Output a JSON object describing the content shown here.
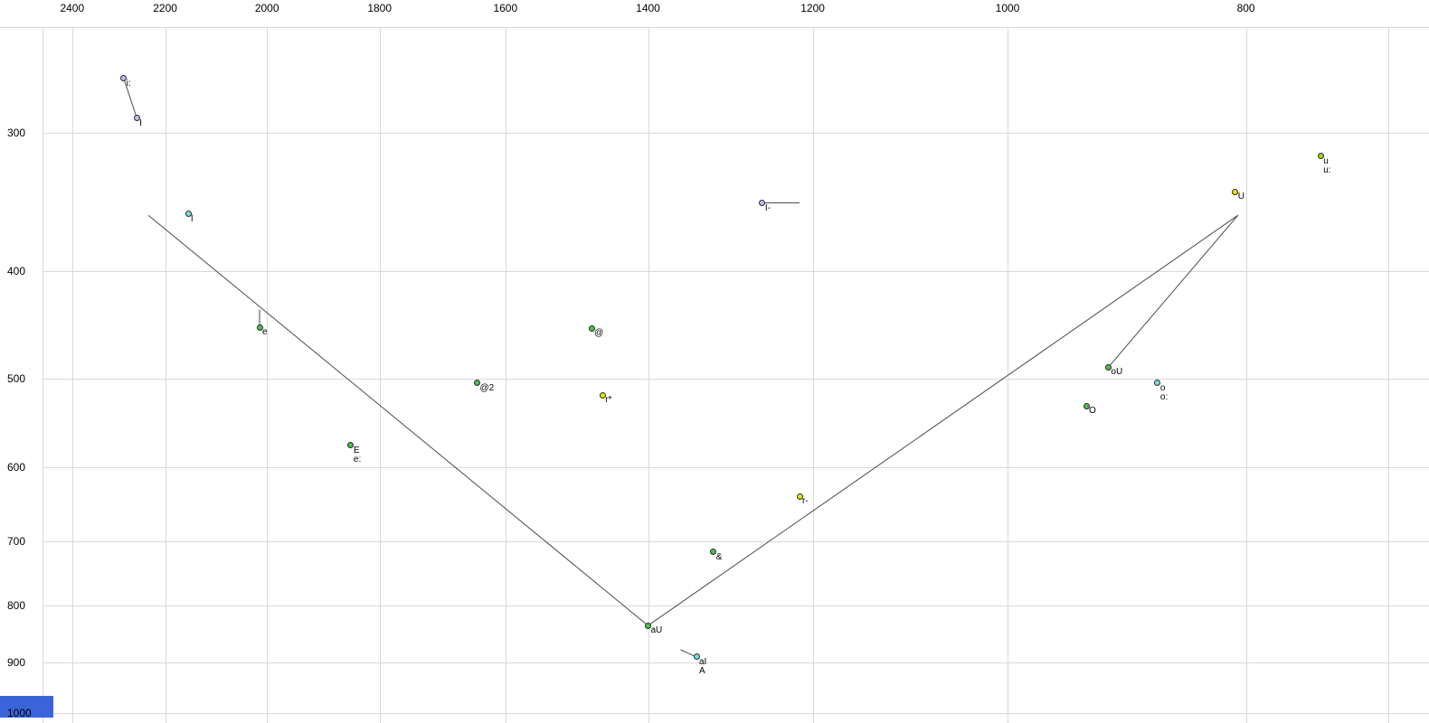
{
  "chart_data": {
    "type": "scatter",
    "title": "",
    "x_axis": {
      "scale": "log",
      "reversed": true,
      "tick_labels": [
        "2400",
        "2200",
        "2000",
        "1800",
        "1600",
        "1400",
        "1200",
        "1000",
        "800"
      ],
      "tick_values": [
        2400,
        2200,
        2000,
        1800,
        1600,
        1400,
        1200,
        1000,
        800
      ],
      "extra_gridline_values": [
        700
      ],
      "range_hz": [
        2500,
        670
      ]
    },
    "y_axis": {
      "scale": "log",
      "reversed": true,
      "tick_labels": [
        "300",
        "400",
        "500",
        "600",
        "700",
        "800",
        "900",
        "1000"
      ],
      "tick_values": [
        300,
        400,
        500,
        600,
        700,
        800,
        900,
        1000
      ],
      "range_hz": [
        240,
        1020
      ]
    },
    "points": [
      {
        "labels": [
          "i:"
        ],
        "f2": 2287,
        "f1": 268,
        "color": "lavender"
      },
      {
        "labels": [
          "I"
        ],
        "f2": 2259,
        "f1": 291,
        "color": "lavender"
      },
      {
        "labels": [
          "l"
        ],
        "f2": 2153,
        "f1": 355,
        "color": "cyan"
      },
      {
        "labels": [
          "e"
        ],
        "f2": 2014,
        "f1": 449,
        "color": "green"
      },
      {
        "labels": [
          "E",
          "e:"
        ],
        "f2": 1849,
        "f1": 574,
        "color": "green"
      },
      {
        "labels": [
          "@2"
        ],
        "f2": 1643,
        "f1": 504,
        "color": "green"
      },
      {
        "labels": [
          "@"
        ],
        "f2": 1476,
        "f1": 450,
        "color": "green"
      },
      {
        "labels": [
          "r*"
        ],
        "f2": 1461,
        "f1": 517,
        "color": "yellow"
      },
      {
        "labels": [
          "aU"
        ],
        "f2": 1400,
        "f1": 834,
        "color": "green"
      },
      {
        "labels": [
          "aI",
          "A"
        ],
        "f2": 1338,
        "f1": 890,
        "color": "cyan"
      },
      {
        "labels": [
          "&"
        ],
        "f2": 1317,
        "f1": 716,
        "color": "green"
      },
      {
        "labels": [
          "I-"
        ],
        "f2": 1258,
        "f1": 347,
        "color": "lavender"
      },
      {
        "labels": [
          "r-"
        ],
        "f2": 1215,
        "f1": 638,
        "color": "yellow"
      },
      {
        "labels": [
          "O"
        ],
        "f2": 929,
        "f1": 529,
        "color": "green"
      },
      {
        "labels": [
          "oU"
        ],
        "f2": 910,
        "f1": 488,
        "color": "green"
      },
      {
        "labels": [
          "o",
          "o:"
        ],
        "f2": 869,
        "f1": 504,
        "color": "cyan"
      },
      {
        "labels": [
          "U"
        ],
        "f2": 808,
        "f1": 339,
        "color": "yellow"
      },
      {
        "labels": [
          "u",
          "u:"
        ],
        "f2": 746,
        "f1": 315,
        "color": "yellowgreen"
      }
    ],
    "segments": [
      {
        "f2a": 2287,
        "f1a": 268,
        "f2b": 2259,
        "f1b": 291
      },
      {
        "f2a": 2014,
        "f1a": 433,
        "f2b": 2014,
        "f1b": 447
      },
      {
        "f2a": 1258,
        "f1a": 347,
        "f2b": 1215,
        "f1b": 347
      },
      {
        "f2a": 2235,
        "f1a": 356,
        "f2b": 1400,
        "f1b": 834
      },
      {
        "f2a": 1400,
        "f1a": 834,
        "f2b": 806,
        "f1b": 356
      },
      {
        "f2a": 806,
        "f1a": 356,
        "f2b": 910,
        "f1b": 488
      },
      {
        "f2a": 1358,
        "f1a": 877,
        "f2b": 1338,
        "f1b": 890
      }
    ],
    "colors": {
      "lavender": "#bcbcf0",
      "cyan": "#74e2e2",
      "green": "#47c447",
      "yellow": "#e8e800",
      "yellowgreen": "#a6d619",
      "segment": "#4a4a4a",
      "gridline": "#d9d9d9",
      "tick_text": "#000000",
      "point_text": "#000000",
      "corner_box": "#3c64d8",
      "background": "#ffffff"
    }
  }
}
